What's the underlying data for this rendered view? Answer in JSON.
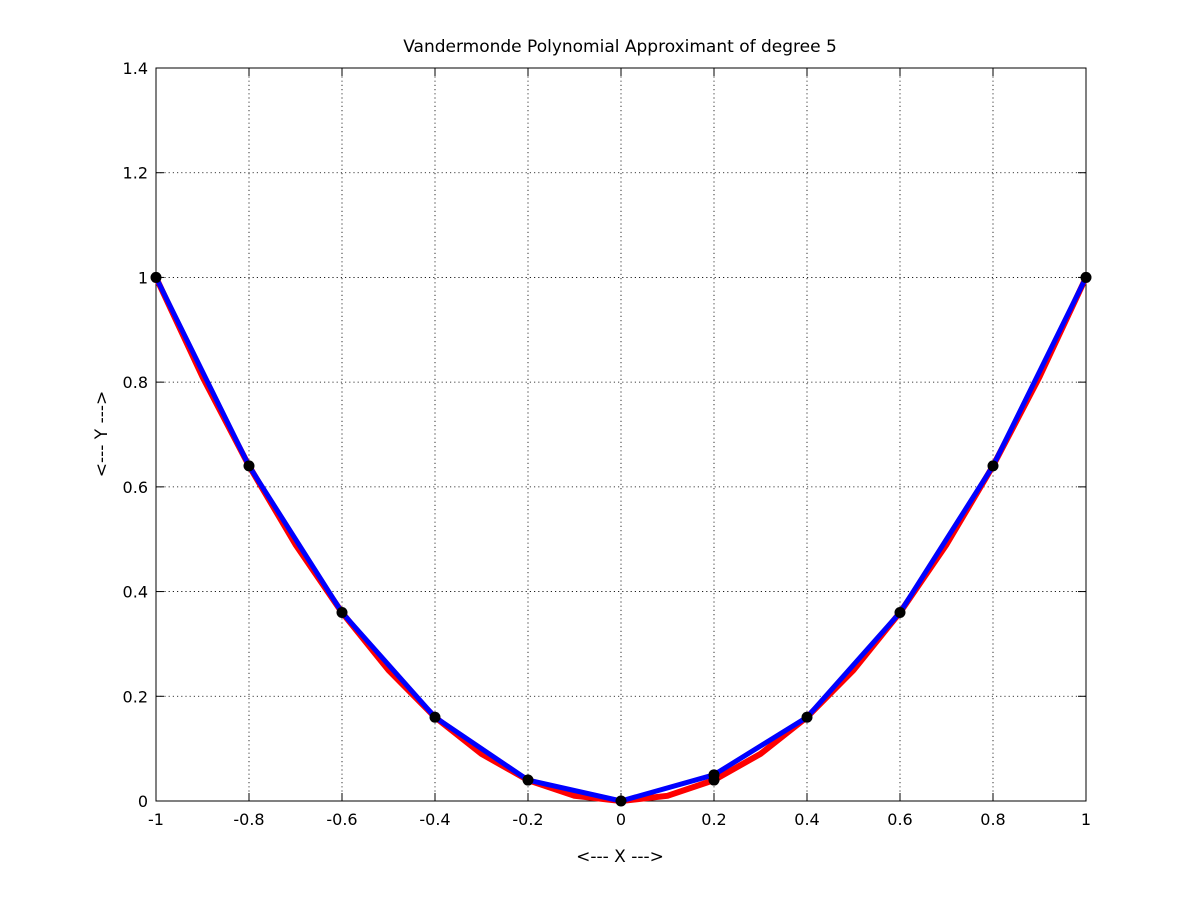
{
  "chart_data": {
    "type": "line",
    "title": "Vandermonde Polynomial Approximant of degree 5",
    "xlabel": "<--- X --->",
    "ylabel": "<--- Y --->",
    "xlim": [
      -1,
      1
    ],
    "ylim": [
      0,
      1.4
    ],
    "xticks": [
      "-1",
      "-0.8",
      "-0.6",
      "-0.4",
      "-0.2",
      "0",
      "0.2",
      "0.4",
      "0.6",
      "0.8",
      "1"
    ],
    "yticks": [
      "0",
      "0.2",
      "0.4",
      "0.6",
      "0.8",
      "1",
      "1.2",
      "1.4"
    ],
    "grid": true,
    "series": [
      {
        "color": "#ff0000",
        "style": "smooth-curve",
        "x": [
          -1,
          -0.9,
          -0.8,
          -0.7,
          -0.6,
          -0.5,
          -0.4,
          -0.3,
          -0.2,
          -0.1,
          0,
          0.1,
          0.2,
          0.3,
          0.4,
          0.5,
          0.6,
          0.7,
          0.8,
          0.9,
          1
        ],
        "y": [
          1,
          0.81,
          0.64,
          0.49,
          0.36,
          0.25,
          0.16,
          0.09,
          0.04,
          0.01,
          0,
          0.01,
          0.04,
          0.09,
          0.16,
          0.25,
          0.36,
          0.49,
          0.64,
          0.81,
          1
        ]
      },
      {
        "color": "#0000ff",
        "style": "line",
        "x": [
          -1,
          -0.8,
          -0.6,
          -0.4,
          -0.2,
          0,
          0.2,
          0.4,
          0.6,
          0.8,
          1
        ],
        "y": [
          1,
          0.64,
          0.36,
          0.16,
          0.04,
          0,
          0.05,
          0.16,
          0.36,
          0.64,
          1
        ]
      },
      {
        "color": "#000000",
        "style": "markers",
        "x": [
          -1,
          -0.8,
          -0.6,
          -0.4,
          -0.2,
          0,
          0.2,
          0.2,
          0.4,
          0.6,
          0.8,
          1
        ],
        "y": [
          1,
          0.64,
          0.36,
          0.16,
          0.04,
          0,
          0.04,
          0.05,
          0.16,
          0.36,
          0.64,
          1
        ]
      }
    ]
  }
}
